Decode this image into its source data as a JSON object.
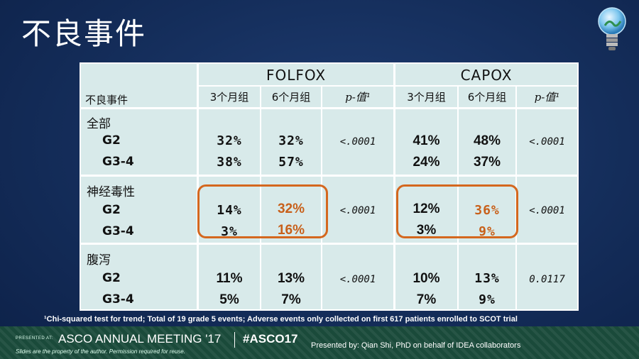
{
  "slide": {
    "title": "不良事件"
  },
  "table": {
    "groups": [
      "FOLFOX",
      "CAPOX"
    ],
    "row_header_label": "不良事件",
    "column_headers": [
      "3个月组",
      "6个月组",
      "p-值¹",
      "3个月组",
      "6个月组",
      "p-值¹"
    ],
    "sections": [
      {
        "category": "全部",
        "rows": [
          {
            "label": "G2",
            "folfox_3": "32%",
            "folfox_6": "32%",
            "folfox_p": "<.0001",
            "capox_3": "41%",
            "capox_6": "48%",
            "capox_p": "<.0001"
          },
          {
            "label": "G3-4",
            "folfox_3": "38%",
            "folfox_6": "57%",
            "capox_3": "24%",
            "capox_6": "37%"
          }
        ]
      },
      {
        "category": "神经毒性",
        "rows": [
          {
            "label": "G2",
            "folfox_3": "14%",
            "folfox_6": "32%",
            "folfox_p": "<.0001",
            "capox_3": "12%",
            "capox_6": "36%",
            "capox_p": "<.0001"
          },
          {
            "label": "G3-4",
            "folfox_3": "3%",
            "folfox_6": "16%",
            "capox_3": "3%",
            "capox_6": "9%"
          }
        ]
      },
      {
        "category": "腹泻",
        "rows": [
          {
            "label": "G2",
            "folfox_3": "11%",
            "folfox_6": "13%",
            "folfox_p": "<.0001",
            "capox_3": "10%",
            "capox_6": "13%",
            "capox_p": "0.0117"
          },
          {
            "label": "G3-4",
            "folfox_3": "5%",
            "folfox_6": "7%",
            "capox_3": "7%",
            "capox_6": "9%"
          }
        ]
      }
    ],
    "highlight_color": "#d4671e"
  },
  "footnote": "¹Chi-squared test for trend; Total of 19 grade 5 events; Adverse events only collected on first 617 patients enrolled to SCOT trial",
  "footer": {
    "presented_at": "PRESENTED AT:",
    "meeting": "ASCO ANNUAL MEETING '17",
    "hashtag": "#ASCO17",
    "slides_note": "Slides are the property of the author. Permission required for reuse.",
    "credit": "Presented by: Qian Shi, PhD on behalf of IDEA collaborators"
  }
}
